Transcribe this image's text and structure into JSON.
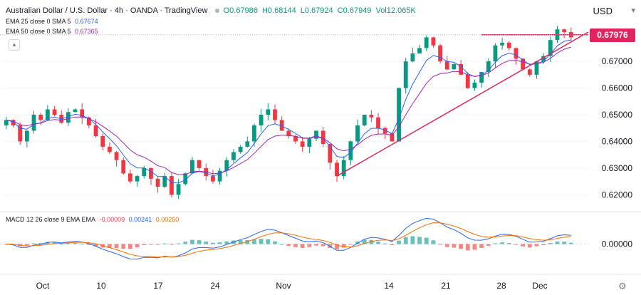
{
  "header": {
    "symbol": "Australian Dollar / U.S. Dollar · 4h · OANDA · TradingView",
    "open": "O0.67986",
    "high": "H0.68144",
    "low": "L0.67924",
    "close": "C0.67949",
    "volume": "Vol12.065K",
    "ema25": {
      "label": "EMA 25 close 0 SMA 5",
      "value": "0.67674",
      "color": "#2962ff"
    },
    "ema50": {
      "label": "EMA 50 close 0 SMA 5",
      "value": "0.67365",
      "color": "#9c27b0"
    },
    "currency": "USD"
  },
  "price_tag": "0.67976",
  "macd": {
    "label": "MACD 12 26 close 9 EMA EMA",
    "hist_value": "-0.00009",
    "macd_value": "0.00241",
    "signal_value": "0.00250"
  },
  "colors": {
    "up": "#089981",
    "down": "#f23645",
    "trend": "#e0245e",
    "ema25": "#2962ff",
    "ema50": "#9c27b0",
    "macd": "#2962ff",
    "signal": "#ff6d00",
    "hist_up": "#26a69a",
    "hist_down": "#ef5350"
  },
  "icons": {
    "collapse": "chevron-up-icon",
    "settings": "gear-icon",
    "currency_caret": "chevron-down-icon"
  },
  "chart_data": {
    "type": "candlestick",
    "ylim": [
      0.615,
      0.685
    ],
    "y_ticks": [
      "0.62000",
      "0.63000",
      "0.64000",
      "0.65000",
      "0.66000",
      "0.67000"
    ],
    "x_tick_labels": [
      "Oct",
      "10",
      "17",
      "24",
      "Nov",
      "14",
      "21",
      "28",
      "Dec"
    ],
    "macd_y_tick": "0.00000",
    "closes": [
      0.648,
      0.646,
      0.64,
      0.644,
      0.65,
      0.648,
      0.652,
      0.65,
      0.647,
      0.651,
      0.652,
      0.649,
      0.646,
      0.642,
      0.638,
      0.636,
      0.633,
      0.628,
      0.625,
      0.627,
      0.63,
      0.626,
      0.623,
      0.627,
      0.62,
      0.624,
      0.628,
      0.633,
      0.63,
      0.627,
      0.625,
      0.629,
      0.633,
      0.636,
      0.638,
      0.64,
      0.646,
      0.65,
      0.652,
      0.648,
      0.644,
      0.642,
      0.64,
      0.638,
      0.641,
      0.644,
      0.639,
      0.632,
      0.627,
      0.633,
      0.64,
      0.646,
      0.65,
      0.649,
      0.645,
      0.643,
      0.64,
      0.66,
      0.67,
      0.673,
      0.675,
      0.679,
      0.676,
      0.67,
      0.667,
      0.669,
      0.665,
      0.66,
      0.662,
      0.666,
      0.67,
      0.676,
      0.677,
      0.675,
      0.671,
      0.667,
      0.665,
      0.67,
      0.672,
      0.678,
      0.682,
      0.681,
      0.679
    ],
    "trendline_top": 0.68,
    "trendline_support": [
      [
        0.627,
        48
      ],
      [
        0.681,
        83
      ]
    ],
    "trend_labels_price": "0.67976"
  }
}
